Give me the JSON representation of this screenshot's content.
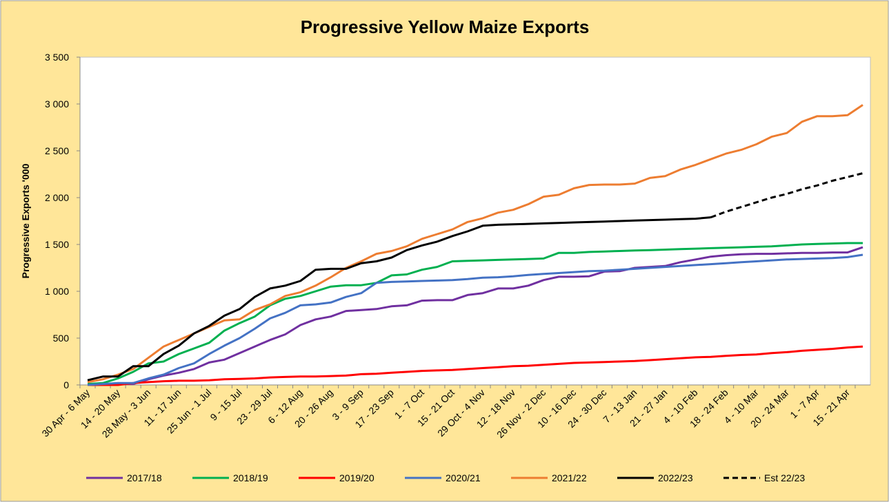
{
  "chart_data": {
    "type": "line",
    "title": "Progressive Yellow Maize Exports",
    "ylabel": "Progressive Exports '000",
    "categories": [
      "30 Apr - 6 May",
      null,
      "14 - 20 May",
      null,
      "28 May - 3 Jun",
      null,
      "11 - 17 Jun",
      null,
      "25 Jun - 1 Jul",
      null,
      "9 - 15 Jul",
      null,
      "23 - 29 Jul",
      null,
      "6 - 12 Aug",
      null,
      "20 - 26 Aug",
      null,
      "3 - 9 Sep",
      null,
      "17 - 23 Sep",
      null,
      "1 - 7 Oct",
      null,
      "15 - 21 Oct",
      null,
      "29 Oct - 4 Nov",
      null,
      "12 - 18 Nov",
      null,
      "26 Nov - 2 Dec",
      null,
      "10 - 16 Dec",
      null,
      "24 - 30 Dec",
      null,
      "7 - 13 Jan",
      null,
      "21 - 27 Jan",
      null,
      "4 - 10 Feb",
      null,
      "18 - 24 Feb",
      null,
      "4 - 10 Mar",
      null,
      "20 - 24 Mar",
      null,
      "1 - 7 Apr",
      null,
      "15 - 21 Apr",
      null
    ],
    "series": [
      {
        "name": "2017/18",
        "color": "#7030a0",
        "values": [
          0,
          0,
          10,
          10,
          60,
          100,
          130,
          170,
          240,
          270,
          340,
          410,
          480,
          540,
          640,
          700,
          730,
          790,
          800,
          810,
          840,
          850,
          900,
          905,
          905,
          960,
          980,
          1030,
          1030,
          1060,
          1120,
          1155,
          1155,
          1160,
          1210,
          1215,
          1250,
          1260,
          1270,
          1310,
          1340,
          1370,
          1385,
          1395,
          1400,
          1400,
          1405,
          1410,
          1410,
          1415,
          1415,
          1470
        ]
      },
      {
        "name": "2018/19",
        "color": "#00b050",
        "values": [
          10,
          20,
          70,
          140,
          230,
          250,
          330,
          390,
          450,
          580,
          660,
          730,
          850,
          920,
          950,
          1000,
          1050,
          1065,
          1065,
          1090,
          1170,
          1180,
          1230,
          1260,
          1320,
          1325,
          1330,
          1335,
          1340,
          1345,
          1350,
          1410,
          1410,
          1420,
          1425,
          1430,
          1435,
          1440,
          1445,
          1450,
          1455,
          1460,
          1465,
          1470,
          1475,
          1480,
          1490,
          1500,
          1505,
          1510,
          1515,
          1515
        ]
      },
      {
        "name": "2019/20",
        "color": "#ff0000",
        "values": [
          0,
          0,
          0,
          20,
          30,
          40,
          45,
          45,
          50,
          60,
          65,
          70,
          80,
          85,
          90,
          90,
          95,
          100,
          115,
          120,
          130,
          140,
          150,
          155,
          160,
          170,
          180,
          190,
          200,
          205,
          215,
          225,
          235,
          240,
          245,
          250,
          255,
          265,
          275,
          285,
          295,
          300,
          310,
          320,
          325,
          340,
          350,
          365,
          375,
          385,
          400,
          410
        ]
      },
      {
        "name": "2020/21",
        "color": "#4472c4",
        "values": [
          0,
          10,
          20,
          20,
          70,
          110,
          180,
          230,
          330,
          420,
          500,
          600,
          710,
          770,
          850,
          860,
          880,
          940,
          980,
          1090,
          1100,
          1105,
          1110,
          1115,
          1120,
          1130,
          1145,
          1150,
          1160,
          1175,
          1185,
          1195,
          1205,
          1215,
          1220,
          1230,
          1240,
          1250,
          1260,
          1270,
          1280,
          1290,
          1300,
          1310,
          1320,
          1330,
          1340,
          1345,
          1350,
          1355,
          1365,
          1390
        ]
      },
      {
        "name": "2021/22",
        "color": "#ed7d31",
        "values": [
          30,
          60,
          110,
          170,
          290,
          410,
          480,
          550,
          620,
          690,
          700,
          800,
          860,
          950,
          990,
          1060,
          1150,
          1250,
          1320,
          1400,
          1430,
          1480,
          1560,
          1610,
          1660,
          1740,
          1780,
          1840,
          1870,
          1930,
          2010,
          2030,
          2100,
          2135,
          2140,
          2140,
          2150,
          2210,
          2230,
          2300,
          2350,
          2410,
          2470,
          2510,
          2570,
          2650,
          2690,
          2810,
          2870,
          2870,
          2880,
          2990
        ]
      },
      {
        "name": "2022/23",
        "color": "#000000",
        "values": [
          50,
          90,
          90,
          200,
          200,
          330,
          420,
          550,
          630,
          740,
          810,
          940,
          1030,
          1060,
          1110,
          1230,
          1240,
          1240,
          1300,
          1320,
          1360,
          1440,
          1490,
          1530,
          1590,
          1640,
          1700,
          1710,
          1715,
          1720,
          1725,
          1730,
          1735,
          1740,
          1745,
          1750,
          1755,
          1760,
          1765,
          1770,
          1775,
          1790,
          null,
          null,
          null,
          null,
          null,
          null,
          null,
          null,
          null,
          null
        ]
      },
      {
        "name": "Est 22/23",
        "color": "#000000",
        "dashed": true,
        "values": [
          null,
          null,
          null,
          null,
          null,
          null,
          null,
          null,
          null,
          null,
          null,
          null,
          null,
          null,
          null,
          null,
          null,
          null,
          null,
          null,
          null,
          null,
          null,
          null,
          null,
          null,
          null,
          null,
          null,
          null,
          null,
          null,
          null,
          null,
          null,
          null,
          null,
          null,
          null,
          null,
          null,
          1790,
          1850,
          1900,
          1950,
          2000,
          2040,
          2090,
          2130,
          2180,
          2220,
          2260
        ]
      }
    ],
    "ylim": [
      0,
      3500
    ],
    "yticks": [
      0,
      500,
      {
        "value": 1000,
        "label": "1 000"
      },
      {
        "value": 1500,
        "label": "1 500"
      },
      {
        "value": 2000,
        "label": "2 000"
      },
      {
        "value": 2500,
        "label": "2 500"
      },
      {
        "value": 3000,
        "label": "3 000"
      },
      {
        "value": 3500,
        "label": "3 500"
      }
    ],
    "grid": false,
    "legend": "bottom"
  }
}
